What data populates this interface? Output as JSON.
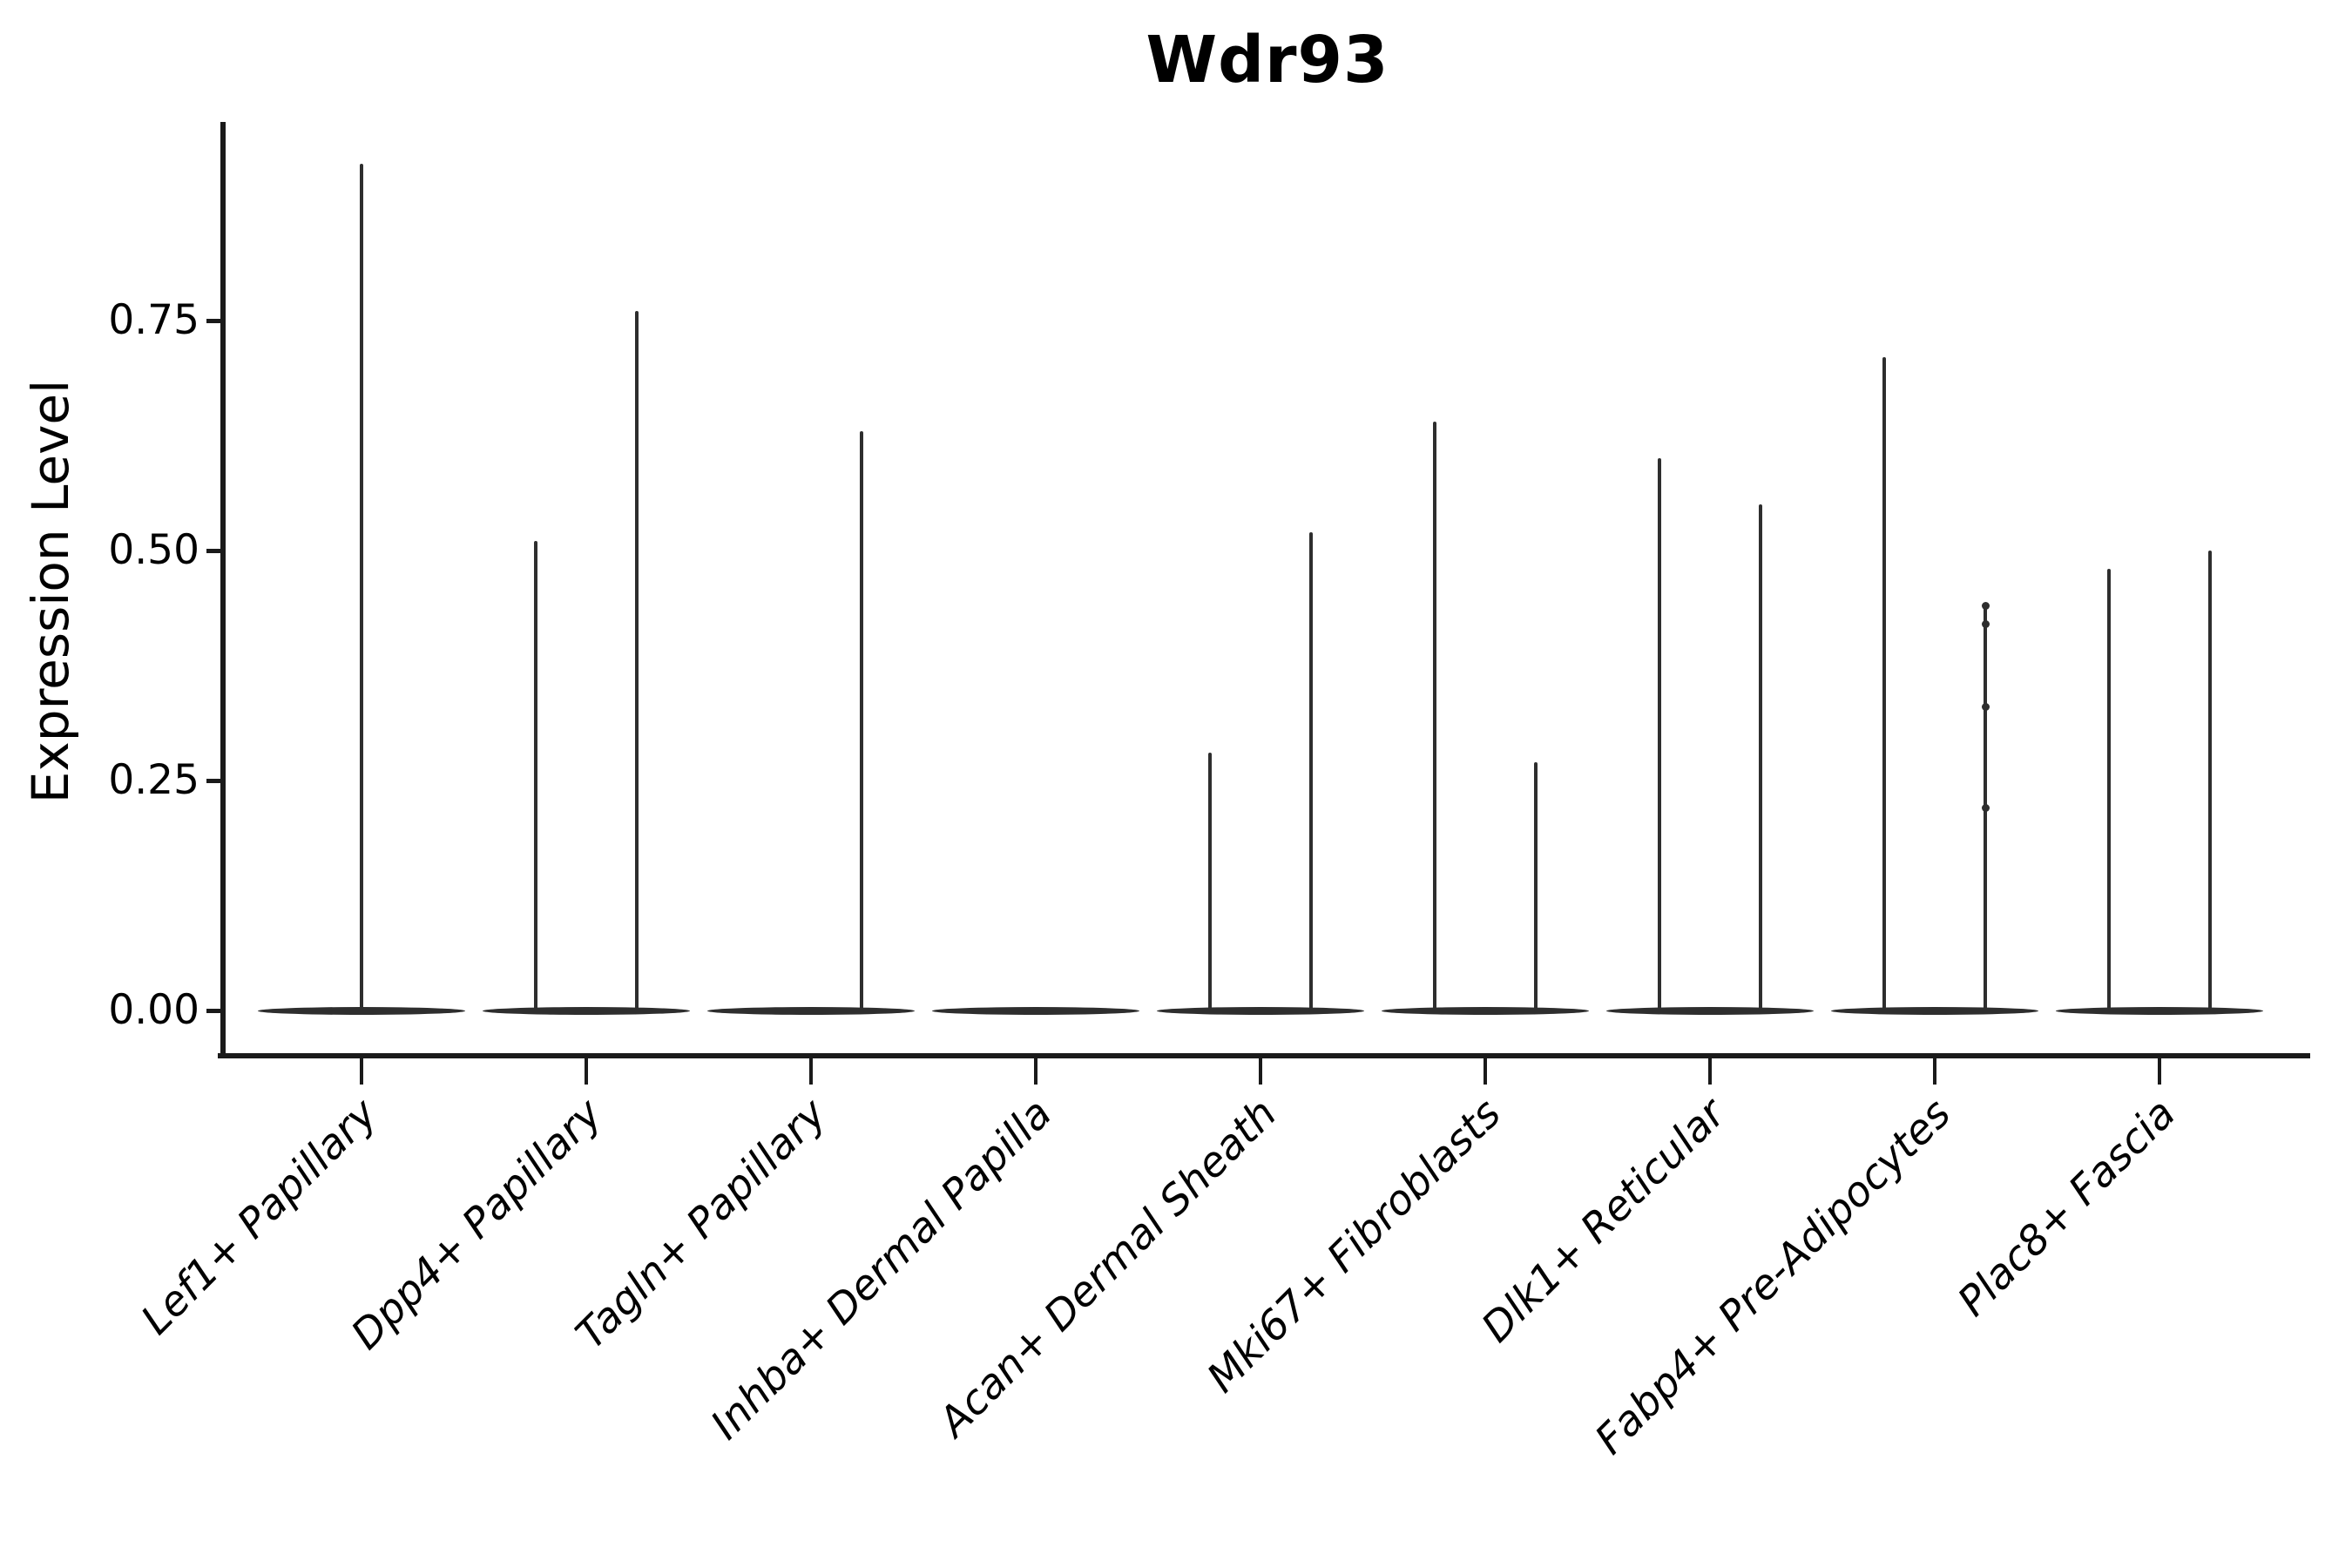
{
  "chart_data": {
    "type": "violin",
    "title": "Wdr93",
    "xlabel": "",
    "ylabel": "Expression Level",
    "ylim": [
      0,
      0.97
    ],
    "grid": false,
    "legend_position": "none",
    "yticks": [
      {
        "label": "0.00",
        "value": 0.0
      },
      {
        "label": "0.25",
        "value": 0.25
      },
      {
        "label": "0.50",
        "value": 0.5
      },
      {
        "label": "0.75",
        "value": 0.75
      }
    ],
    "x_tick_label_rotation_deg": 45,
    "x_tick_label_style": "italic",
    "categories": [
      "Lef1+ Papillary",
      "Dpp4+ Papillary",
      "Tagln+ Papillary",
      "Inhba+ Dermal Papilla",
      "Acan+ Dermal Sheath",
      "Mki67+ Fibroblasts",
      "Dlk1+ Reticular",
      "Fabp4+ Pre-Adipocytes",
      "Plac8+ Fascia"
    ],
    "violins": [
      {
        "category": "Lef1+ Papillary",
        "baseline_value": 0.0,
        "spikes": [
          {
            "position": "center",
            "max": 0.92
          }
        ]
      },
      {
        "category": "Dpp4+ Papillary",
        "baseline_value": 0.0,
        "spikes": [
          {
            "position": "left",
            "max": 0.51
          },
          {
            "position": "right",
            "max": 0.76
          }
        ]
      },
      {
        "category": "Tagln+ Papillary",
        "baseline_value": 0.0,
        "spikes": [
          {
            "position": "right",
            "max": 0.63
          }
        ]
      },
      {
        "category": "Inhba+ Dermal Papilla",
        "baseline_value": 0.0,
        "spikes": []
      },
      {
        "category": "Acan+ Dermal Sheath",
        "baseline_value": 0.0,
        "spikes": [
          {
            "position": "left",
            "max": 0.28
          },
          {
            "position": "right",
            "max": 0.52
          }
        ]
      },
      {
        "category": "Mki67+ Fibroblasts",
        "baseline_value": 0.0,
        "spikes": [
          {
            "position": "left",
            "max": 0.64
          },
          {
            "position": "right",
            "max": 0.27
          }
        ]
      },
      {
        "category": "Dlk1+ Reticular",
        "baseline_value": 0.0,
        "spikes": [
          {
            "position": "left",
            "max": 0.6
          },
          {
            "position": "right",
            "max": 0.55
          }
        ]
      },
      {
        "category": "Fabp4+ Pre-Adipocytes",
        "baseline_value": 0.0,
        "spikes": [
          {
            "position": "left",
            "max": 0.71
          },
          {
            "position": "right",
            "max": 0.44,
            "dots": [
              0.44,
              0.42,
              0.33,
              0.22
            ]
          }
        ]
      },
      {
        "category": "Plac8+ Fascia",
        "baseline_value": 0.0,
        "spikes": [
          {
            "position": "left",
            "max": 0.48
          },
          {
            "position": "right",
            "max": 0.5
          }
        ]
      }
    ],
    "colors": {
      "ink": "#1a1a1a",
      "violin_stroke": "#2e2e2e",
      "background": "#ffffff"
    }
  }
}
